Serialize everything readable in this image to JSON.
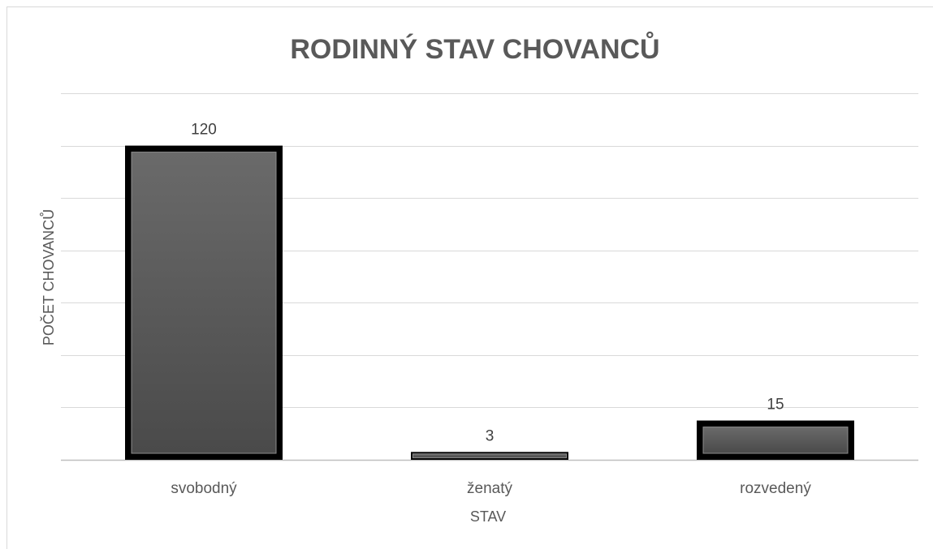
{
  "chart_data": {
    "type": "bar",
    "title": "RODINNÝ STAV CHOVANCŮ",
    "xlabel": "STAV",
    "ylabel": "POČET CHOVANCŮ",
    "categories": [
      "svobodný",
      "ženatý",
      "rozvedený"
    ],
    "values": [
      120,
      3,
      15
    ],
    "ylim": [
      0,
      140
    ],
    "grid": true,
    "y_tick_labels_visible": false,
    "legend": false,
    "colors": {
      "bar_fill": "#595959",
      "bar_edge": "#000000",
      "bar_bevel_light": "#8c8c8c",
      "grid": "#d9d9d9",
      "text": "#595959"
    }
  }
}
